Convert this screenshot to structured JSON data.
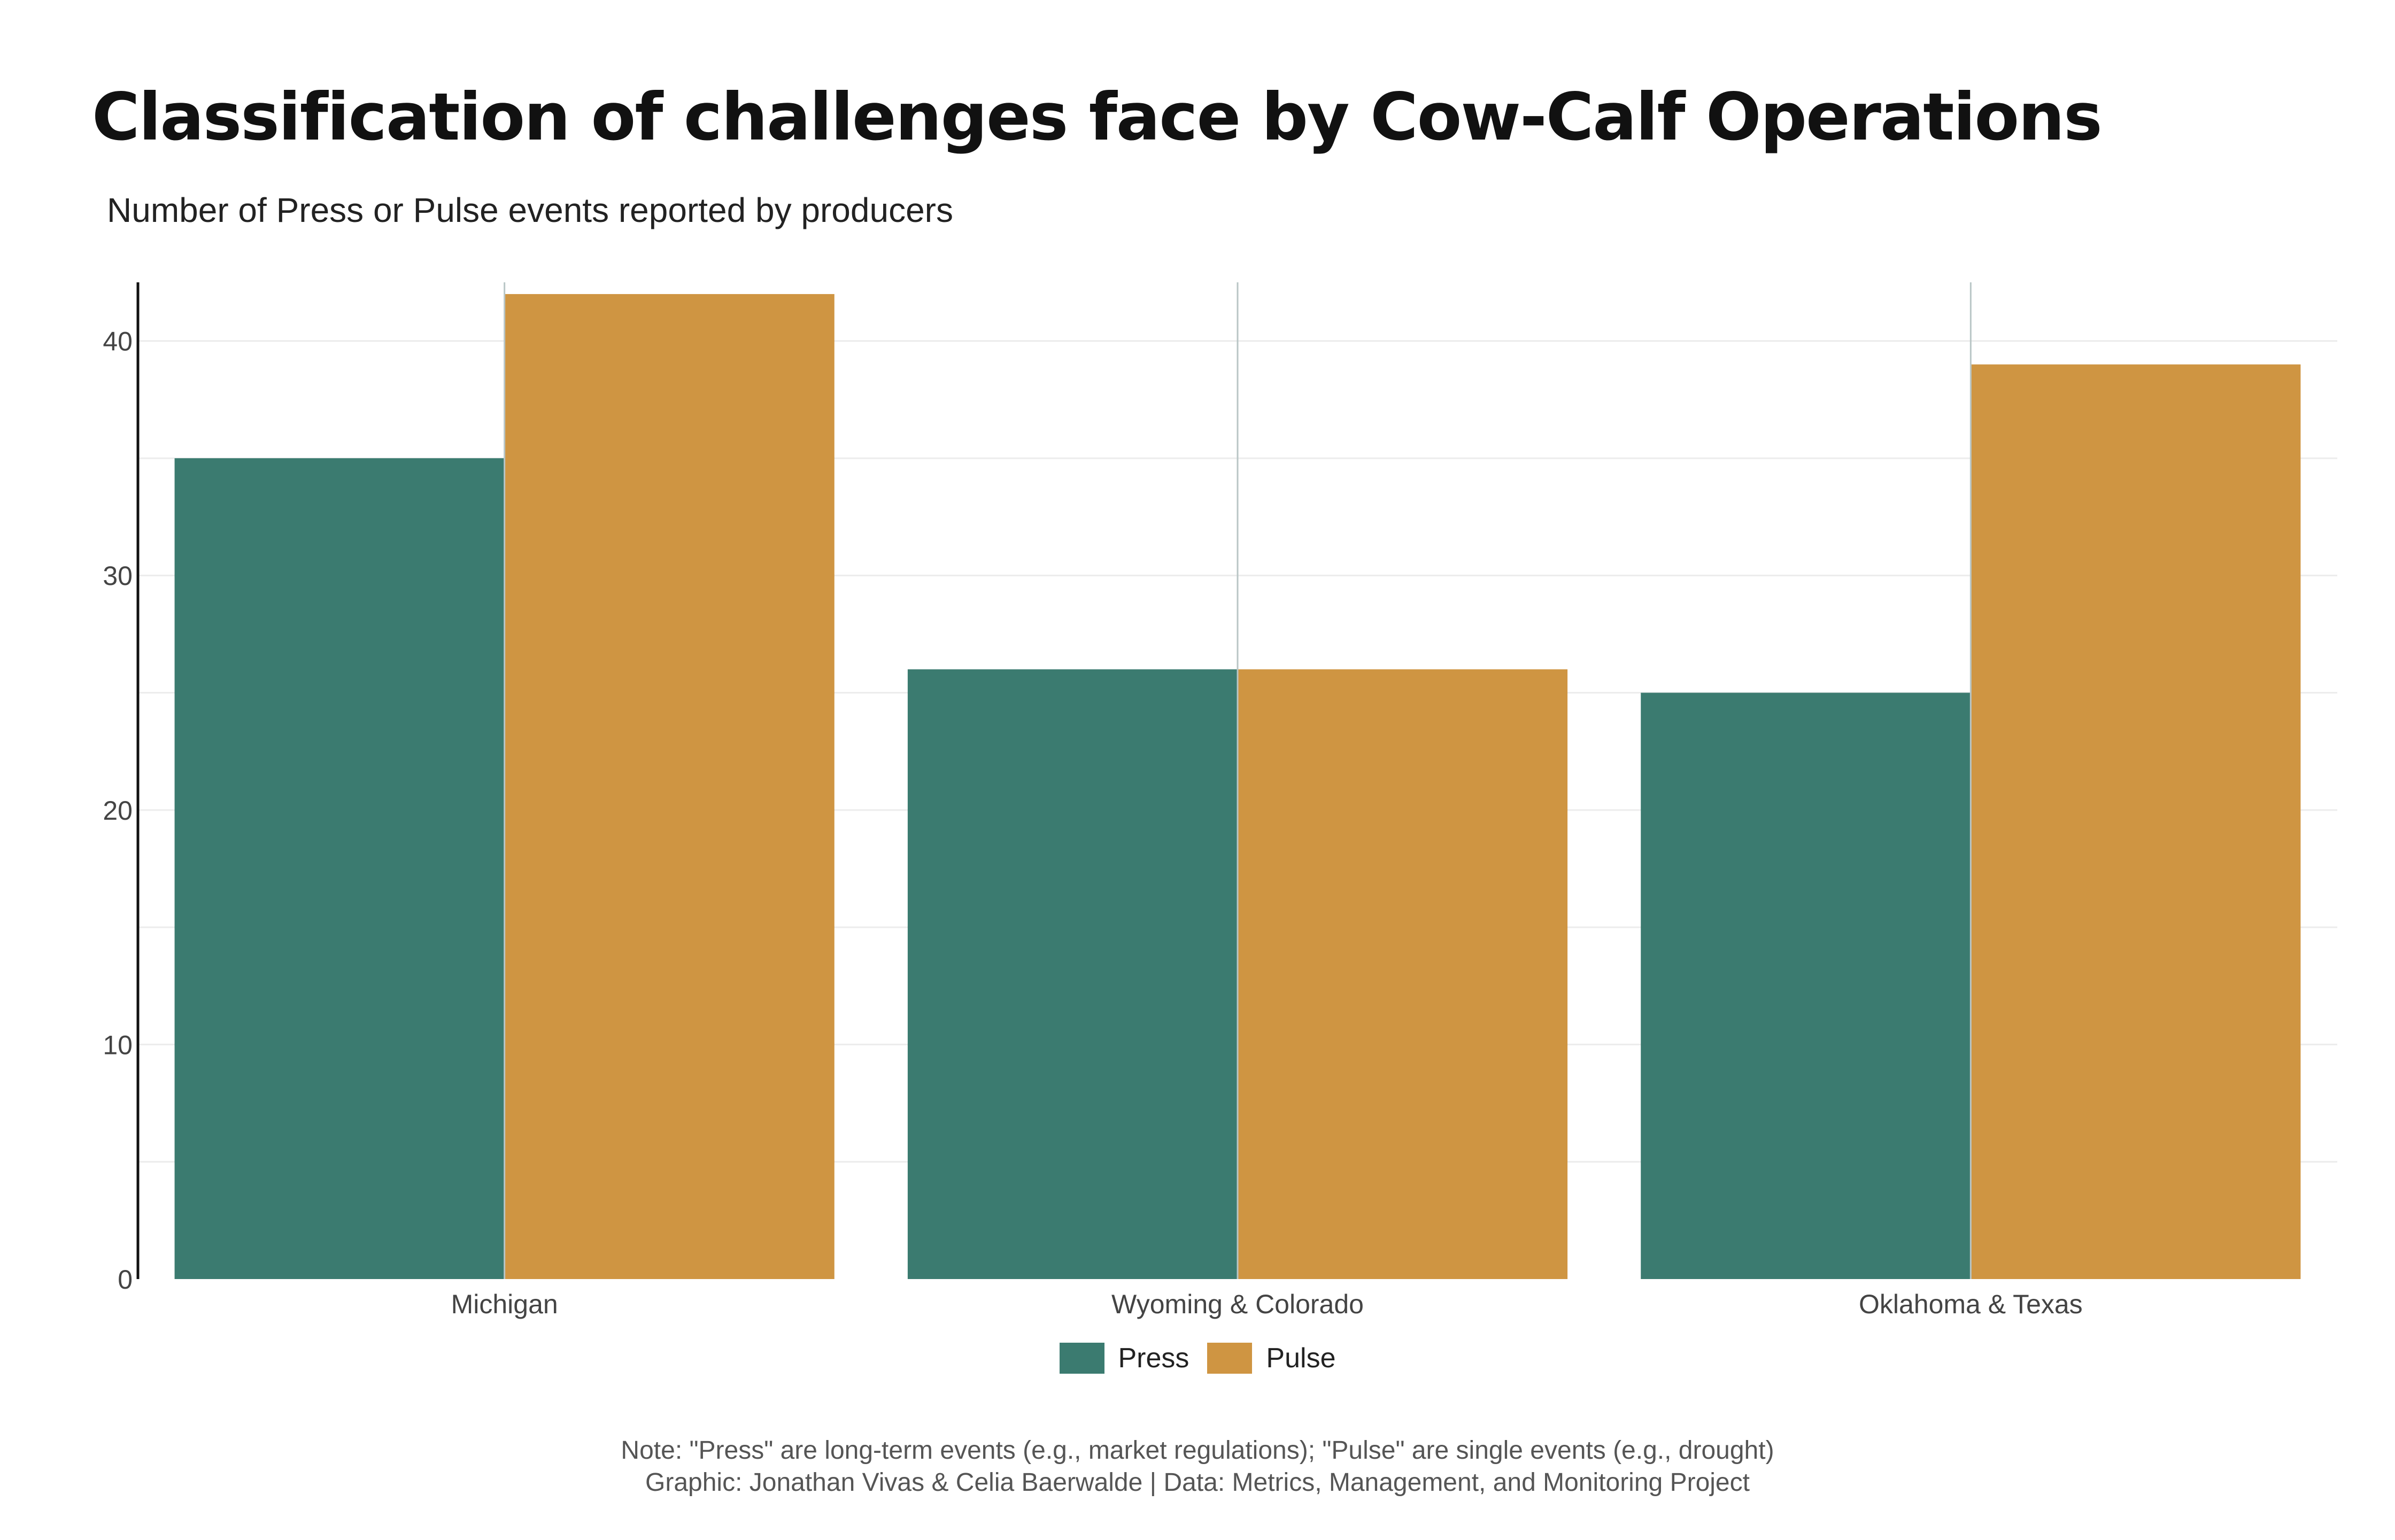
{
  "title": "Classification of challenges face by Cow-Calf Operations",
  "subtitle": "Number of Press or Pulse events reported by producers",
  "note": "Note: \"Press\" are long-term events (e.g., market regulations); \"Pulse\" are single events (e.g., drought)",
  "credit": "Graphic: Jonathan Vivas & Celia Baerwalde | Data: Metrics, Management, and Monitoring Project",
  "colors": {
    "press": "#3b7b70",
    "pulse": "#cf9542",
    "grid": "#ececec",
    "axis": "#111111"
  },
  "chart_data": {
    "type": "bar",
    "title": "Classification of challenges face by Cow-Calf Operations",
    "subtitle": "Number of Press or Pulse events reported by producers",
    "xlabel": "",
    "ylabel": "",
    "categories": [
      "Michigan",
      "Wyoming & Colorado",
      "Oklahoma & Texas"
    ],
    "series": [
      {
        "name": "Press",
        "values": [
          35,
          26,
          25
        ]
      },
      {
        "name": "Pulse",
        "values": [
          42,
          26,
          39
        ]
      }
    ],
    "ylim": [
      0,
      42.5
    ],
    "yticks": [
      0,
      10,
      20,
      30,
      40
    ],
    "ytick_labels": [
      "0",
      "10",
      "20",
      "30",
      "40"
    ],
    "legend": "bottom-center"
  }
}
